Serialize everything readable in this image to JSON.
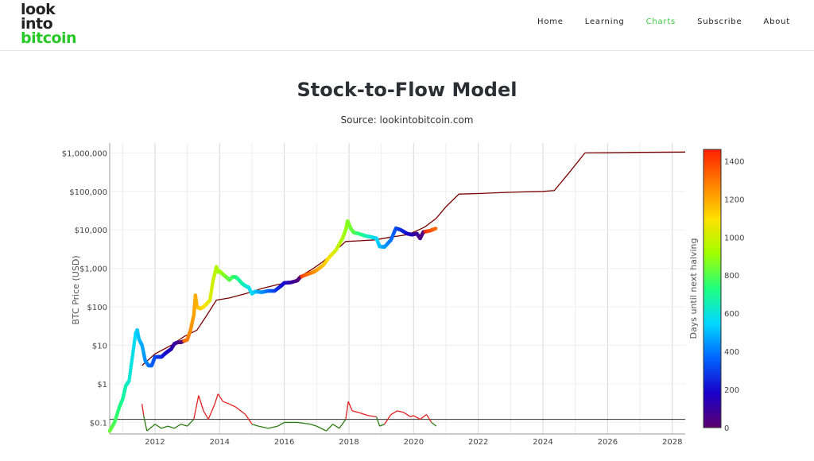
{
  "header": {
    "logo": [
      "look",
      "into",
      "bitcoin"
    ],
    "logo_accent": "#27c927",
    "nav": [
      {
        "label": "Home",
        "active": false
      },
      {
        "label": "Learning",
        "active": false
      },
      {
        "label": "Charts",
        "active": true
      },
      {
        "label": "Subscribe",
        "active": false
      },
      {
        "label": "About",
        "active": false
      }
    ],
    "active_color": "#3cc93c"
  },
  "chart_data": {
    "type": "scatter",
    "title": "Stock-to-Flow Model",
    "subtitle": "Source: lookintobitcoin.com",
    "ylabel": "BTC Price (USD)",
    "xlabel": "",
    "y_scale": "log",
    "ylim": [
      0.05,
      1800000
    ],
    "xlim": [
      2010.6,
      2028.4
    ],
    "x_ticks": [
      2012,
      2014,
      2016,
      2018,
      2020,
      2022,
      2024,
      2026,
      2028
    ],
    "y_ticks": [
      {
        "value": 0.1,
        "label": "$0.1"
      },
      {
        "value": 1,
        "label": "$1"
      },
      {
        "value": 10,
        "label": "$10"
      },
      {
        "value": 100,
        "label": "$100"
      },
      {
        "value": 1000,
        "label": "$1,000"
      },
      {
        "value": 10000,
        "label": "$10,000"
      },
      {
        "value": 100000,
        "label": "$100,000"
      },
      {
        "value": 1000000,
        "label": "$1,000,000"
      }
    ],
    "colorbar": {
      "label": "Days until next halving",
      "range": [
        0,
        1460
      ],
      "ticks": [
        0,
        200,
        400,
        600,
        800,
        1000,
        1200,
        1400
      ],
      "colors": [
        "#5c0070",
        "#1800c8",
        "#0064ff",
        "#00d8ff",
        "#20ff80",
        "#a0ff00",
        "#ffe000",
        "#ff8000",
        "#ff2000"
      ]
    },
    "grid": true,
    "series": [
      {
        "kind": "price",
        "colored_by": "days until next halving",
        "x": [
          2010.6,
          2010.75,
          2010.9,
          2011.0,
          2011.1,
          2011.2,
          2011.3,
          2011.4,
          2011.45,
          2011.5,
          2011.6,
          2011.7,
          2011.8,
          2011.9,
          2012.0,
          2012.1,
          2012.2,
          2012.3,
          2012.4,
          2012.5,
          2012.6,
          2012.7,
          2012.8,
          2012.9,
          2013.0,
          2013.1,
          2013.2,
          2013.25,
          2013.3,
          2013.4,
          2013.5,
          2013.6,
          2013.7,
          2013.8,
          2013.9,
          2013.95,
          2014.0,
          2014.1,
          2014.2,
          2014.3,
          2014.4,
          2014.5,
          2014.6,
          2014.7,
          2014.8,
          2014.9,
          2015.0,
          2015.1,
          2015.3,
          2015.5,
          2015.7,
          2015.9,
          2016.0,
          2016.2,
          2016.4,
          2016.5,
          2016.7,
          2016.9,
          2017.0,
          2017.2,
          2017.4,
          2017.6,
          2017.8,
          2017.9,
          2017.96,
          2018.05,
          2018.15,
          2018.3,
          2018.5,
          2018.7,
          2018.85,
          2018.95,
          2019.1,
          2019.3,
          2019.45,
          2019.6,
          2019.8,
          2019.95,
          2020.1,
          2020.2,
          2020.3,
          2020.5,
          2020.7
        ],
        "y": [
          0.06,
          0.1,
          0.25,
          0.4,
          0.9,
          1.2,
          5,
          20,
          25,
          15,
          10,
          4,
          3,
          3,
          5,
          5,
          5,
          6,
          7,
          8,
          11,
          12,
          12,
          13,
          14,
          25,
          60,
          200,
          100,
          90,
          100,
          120,
          150,
          500,
          1100,
          800,
          850,
          700,
          600,
          500,
          600,
          600,
          500,
          400,
          350,
          320,
          220,
          250,
          240,
          260,
          260,
          350,
          420,
          430,
          480,
          600,
          700,
          800,
          900,
          1200,
          2000,
          3000,
          6000,
          10000,
          17000,
          11000,
          8500,
          8000,
          7000,
          6500,
          6000,
          3700,
          3600,
          5500,
          11000,
          10000,
          8000,
          7500,
          8000,
          6000,
          8800,
          9500,
          11000
        ]
      },
      {
        "kind": "stock-to-flow model",
        "color": "#7a0000",
        "x": [
          2011.6,
          2012.0,
          2012.5,
          2012.9,
          2013.3,
          2013.6,
          2013.9,
          2014.3,
          2014.8,
          2015.3,
          2015.8,
          2016.3,
          2016.6,
          2016.9,
          2017.2,
          2017.5,
          2017.9,
          2018.3,
          2018.8,
          2019.3,
          2019.8,
          2020.1,
          2020.35,
          2020.7,
          2021.0,
          2021.4,
          2022.0,
          2023.0,
          2024.0,
          2024.35,
          2024.8,
          2025.3,
          2026.0,
          2027.0,
          2028.4
        ],
        "y": [
          3,
          6,
          10,
          17,
          25,
          60,
          150,
          170,
          220,
          300,
          380,
          450,
          700,
          1000,
          1500,
          2500,
          5000,
          5200,
          5500,
          6500,
          7500,
          9500,
          12000,
          20000,
          40000,
          85000,
          88000,
          95000,
          100000,
          105000,
          300000,
          1000000,
          1010000,
          1030000,
          1050000
        ]
      },
      {
        "kind": "oscillator",
        "color_above": "#e02020",
        "color_below": "#2a7a10",
        "baseline": 0.12,
        "x": [
          2011.6,
          2011.65,
          2011.75,
          2011.85,
          2012.0,
          2012.2,
          2012.4,
          2012.6,
          2012.8,
          2013.0,
          2013.2,
          2013.35,
          2013.5,
          2013.65,
          2013.85,
          2013.95,
          2014.1,
          2014.3,
          2014.5,
          2014.8,
          2015.0,
          2015.2,
          2015.5,
          2015.8,
          2016.0,
          2016.4,
          2016.8,
          2017.0,
          2017.3,
          2017.5,
          2017.7,
          2017.9,
          2017.98,
          2018.1,
          2018.3,
          2018.6,
          2018.85,
          2018.95,
          2019.1,
          2019.3,
          2019.5,
          2019.7,
          2019.9,
          2020.0,
          2020.2,
          2020.4,
          2020.55,
          2020.7
        ],
        "y": [
          0.3,
          0.15,
          0.06,
          0.07,
          0.09,
          0.07,
          0.08,
          0.07,
          0.09,
          0.08,
          0.12,
          0.5,
          0.2,
          0.12,
          0.3,
          0.55,
          0.35,
          0.3,
          0.25,
          0.16,
          0.09,
          0.08,
          0.07,
          0.08,
          0.1,
          0.1,
          0.09,
          0.08,
          0.06,
          0.09,
          0.07,
          0.12,
          0.35,
          0.2,
          0.18,
          0.15,
          0.14,
          0.08,
          0.09,
          0.16,
          0.2,
          0.18,
          0.14,
          0.15,
          0.12,
          0.16,
          0.1,
          0.08
        ]
      }
    ]
  }
}
